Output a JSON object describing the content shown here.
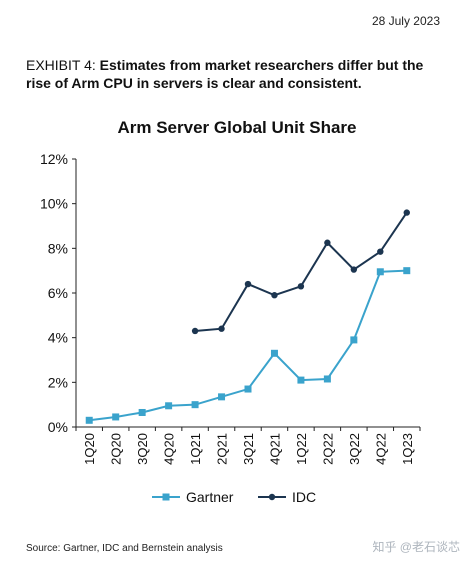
{
  "header": {
    "date": "28 July 2023",
    "exhibit_label": "EXHIBIT 4:",
    "exhibit_text": "Estimates from market researchers differ but the rise of Arm CPU in servers is clear and consistent."
  },
  "footer": {
    "source": "Source: Gartner, IDC and Bernstein analysis",
    "watermark": "知乎 @老石谈芯"
  },
  "colors": {
    "gartner": "#3aa3cc",
    "idc": "#1c3550",
    "axis": "#222222"
  },
  "chart_data": {
    "type": "line",
    "title": "Arm Server Global Unit Share",
    "categories": [
      "1Q20",
      "2Q20",
      "3Q20",
      "4Q20",
      "1Q21",
      "2Q21",
      "3Q21",
      "4Q21",
      "1Q22",
      "2Q22",
      "3Q22",
      "4Q22",
      "1Q23"
    ],
    "y_ticks": [
      "0%",
      "2%",
      "4%",
      "6%",
      "8%",
      "10%",
      "12%"
    ],
    "ylim": [
      0,
      12
    ],
    "y_unit": "%",
    "grid": false,
    "legend_position": "bottom",
    "series": [
      {
        "name": "Gartner",
        "marker": "square",
        "values": [
          0.3,
          0.45,
          0.65,
          0.95,
          1.0,
          1.35,
          1.7,
          3.3,
          2.1,
          2.15,
          3.9,
          6.95,
          7.0
        ]
      },
      {
        "name": "IDC",
        "marker": "circle",
        "values": [
          null,
          null,
          null,
          null,
          4.3,
          4.4,
          6.4,
          5.9,
          6.3,
          8.25,
          7.05,
          7.85,
          9.6
        ]
      }
    ]
  }
}
